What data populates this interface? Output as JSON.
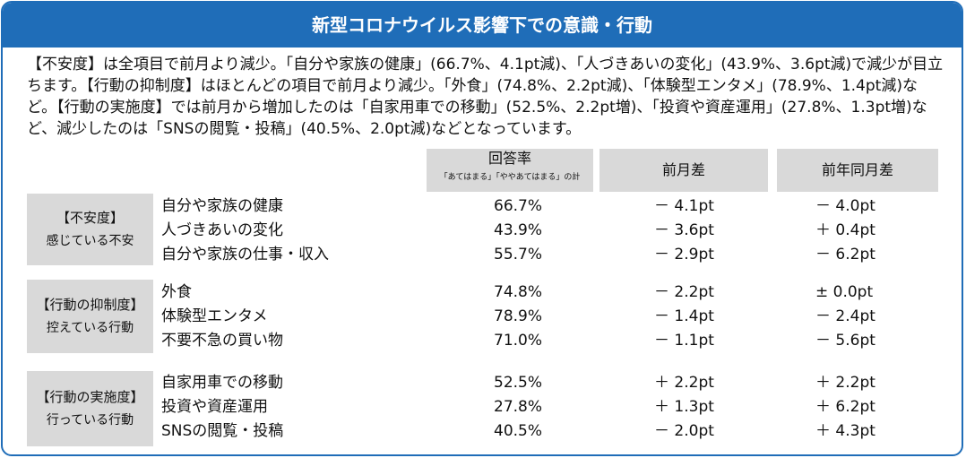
{
  "title": "新型コロナウイルス影響下での意識・行動",
  "summary": "【不安度】は全項目で前月より減少。「自分や家族の健康」(66.7%、4.1pt減)、「人づきあいの変化」(43.9%、3.6pt減)で減少が目立ちます。【行動の抑制度】はほとんどの項目で前月より減少。「外食」(74.8%、2.2pt減)、「体験型エンタメ」(78.9%、1.4pt減)など。【行動の実施度】では前月から増加したのは「自家用車での移動」(52.5%、2.2pt増)、「投資や資産運用」(27.8%、1.3pt増)など、減少したのは「SNSの閲覧・投稿」(40.5%、2.0pt減)などとなっています。",
  "columns": {
    "rate": "回答率",
    "rate_note": "「あてはまる」「ややあてはまる」の計",
    "mom": "前月差",
    "yoy": "前年同月差"
  },
  "groups": [
    {
      "label1": "【不安度】",
      "label2": "感じている不安",
      "rows": [
        {
          "item": "自分や家族の健康",
          "rate": "66.7%",
          "mom": "－ 4.1pt",
          "yoy": "－ 4.0pt"
        },
        {
          "item": "人づきあいの変化",
          "rate": "43.9%",
          "mom": "－ 3.6pt",
          "yoy": "＋ 0.4pt"
        },
        {
          "item": "自分や家族の仕事・収入",
          "rate": "55.7%",
          "mom": "－ 2.9pt",
          "yoy": "－ 6.2pt"
        }
      ]
    },
    {
      "label1": "【行動の抑制度】",
      "label2": "控えている行動",
      "rows": [
        {
          "item": "外食",
          "rate": "74.8%",
          "mom": "－ 2.2pt",
          "yoy": "± 0.0pt"
        },
        {
          "item": "体験型エンタメ",
          "rate": "78.9%",
          "mom": "－ 1.4pt",
          "yoy": "－ 2.4pt"
        },
        {
          "item": "不要不急の買い物",
          "rate": "71.0%",
          "mom": "－ 1.1pt",
          "yoy": "－ 5.6pt"
        }
      ]
    },
    {
      "label1": "【行動の実施度】",
      "label2": "行っている行動",
      "rows": [
        {
          "item": "自家用車での移動",
          "rate": "52.5%",
          "mom": "＋ 2.2pt",
          "yoy": "＋ 2.2pt"
        },
        {
          "item": "投資や資産運用",
          "rate": "27.8%",
          "mom": "＋ 1.3pt",
          "yoy": "＋ 6.2pt"
        },
        {
          "item": "SNSの閲覧・投稿",
          "rate": "40.5%",
          "mom": "－  2.0pt",
          "yoy": "＋ 4.3pt"
        }
      ]
    }
  ]
}
